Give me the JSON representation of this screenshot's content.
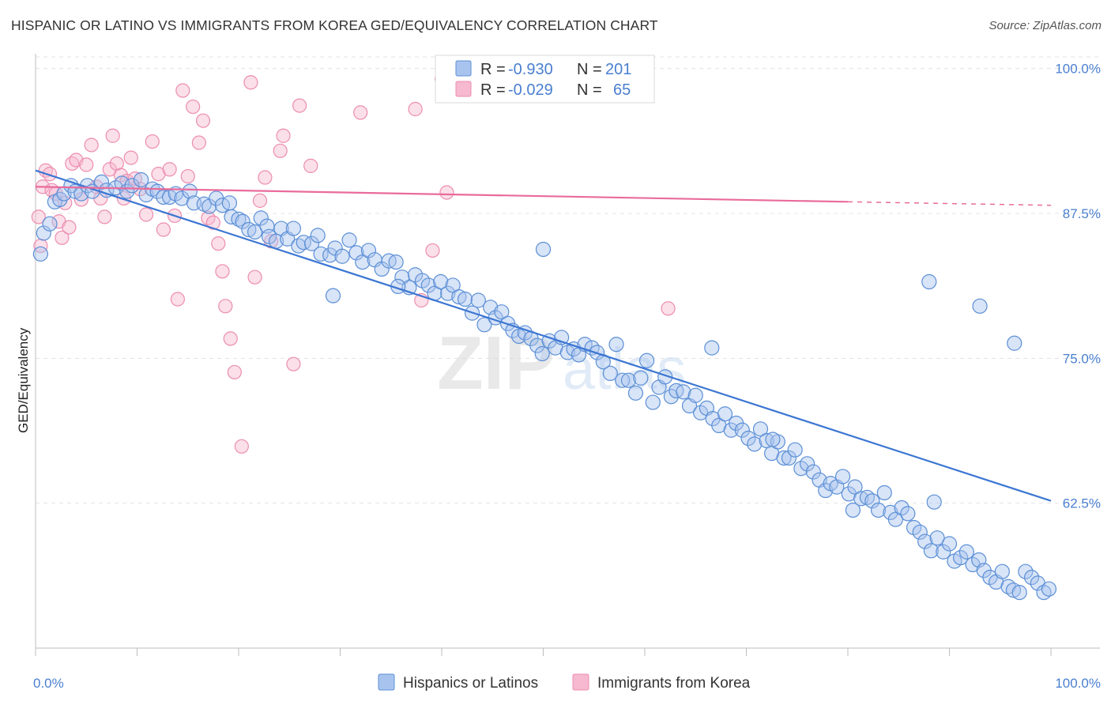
{
  "title": "HISPANIC OR LATINO VS IMMIGRANTS FROM KOREA GED/EQUIVALENCY CORRELATION CHART",
  "source": "Source: ZipAtlas.com",
  "watermark": {
    "zip": "ZIP",
    "atlas": "atlas"
  },
  "colors": {
    "blue": "#4a7fd0",
    "blue_fill": "#a8c4ee",
    "blue_stroke": "#5b8fd6",
    "pink": "#e96b9b",
    "pink_fill": "#f6b9cf",
    "pink_stroke": "#ec8db0"
  },
  "legend_top": {
    "rows": [
      {
        "r_label": "R = ",
        "r_value": "-0.930",
        "n_label": "N = ",
        "n_value": "201",
        "series": "blue"
      },
      {
        "r_label": "R = ",
        "r_value": "-0.029",
        "n_label": "N = ",
        "n_value": "65",
        "series": "pink"
      }
    ]
  },
  "legend_bottom": [
    "Hispanics or Latinos",
    "Immigrants from Korea"
  ],
  "chart_data": {
    "type": "scatter",
    "title": "HISPANIC OR LATINO VS IMMIGRANTS FROM KOREA GED/EQUIVALENCY CORRELATION CHART",
    "xlabel": "",
    "ylabel": "GED/Equivalency",
    "xlim": [
      0,
      100
    ],
    "ylim": [
      50,
      101
    ],
    "x_tick_labels": [
      "0.0%",
      "100.0%"
    ],
    "y_ticks": [
      62.5,
      75.0,
      87.5,
      100.0
    ],
    "y_tick_labels": [
      "62.5%",
      "75.0%",
      "87.5%",
      "100.0%"
    ],
    "grid": true,
    "legend_placement": "top-center",
    "series": [
      {
        "name": "Hispanics or Latinos",
        "color": "#4a7fd0",
        "trend": {
          "x": [
            0,
            100
          ],
          "y": [
            91.2,
            62.7
          ]
        },
        "points": [
          [
            0.5,
            84.0
          ],
          [
            0.8,
            85.8
          ],
          [
            1.4,
            86.6
          ],
          [
            1.9,
            88.5
          ],
          [
            2.4,
            88.7
          ],
          [
            2.8,
            89.2
          ],
          [
            3.5,
            89.9
          ],
          [
            3.9,
            89.4
          ],
          [
            4.5,
            89.2
          ],
          [
            5.1,
            89.9
          ],
          [
            5.6,
            89.4
          ],
          [
            6.5,
            90.2
          ],
          [
            7.0,
            89.5
          ],
          [
            7.9,
            89.7
          ],
          [
            8.5,
            90.1
          ],
          [
            9.0,
            89.4
          ],
          [
            9.5,
            89.9
          ],
          [
            10.4,
            90.4
          ],
          [
            10.9,
            89.1
          ],
          [
            11.5,
            89.6
          ],
          [
            12.0,
            89.4
          ],
          [
            12.6,
            88.9
          ],
          [
            13.2,
            88.9
          ],
          [
            13.8,
            89.2
          ],
          [
            14.4,
            88.8
          ],
          [
            15.2,
            89.4
          ],
          [
            15.6,
            88.4
          ],
          [
            16.6,
            88.3
          ],
          [
            17.1,
            88.1
          ],
          [
            17.8,
            88.8
          ],
          [
            18.4,
            88.2
          ],
          [
            19.1,
            88.4
          ],
          [
            19.3,
            87.2
          ],
          [
            20.0,
            87.0
          ],
          [
            20.4,
            86.8
          ],
          [
            21.0,
            86.1
          ],
          [
            21.6,
            85.9
          ],
          [
            22.2,
            87.1
          ],
          [
            22.8,
            86.4
          ],
          [
            23.0,
            85.5
          ],
          [
            23.7,
            85.1
          ],
          [
            24.2,
            86.2
          ],
          [
            24.8,
            85.3
          ],
          [
            25.4,
            86.2
          ],
          [
            25.9,
            84.7
          ],
          [
            26.4,
            85.0
          ],
          [
            27.2,
            84.9
          ],
          [
            27.8,
            85.6
          ],
          [
            28.1,
            84.0
          ],
          [
            29.0,
            83.9
          ],
          [
            29.5,
            84.5
          ],
          [
            30.2,
            83.8
          ],
          [
            30.9,
            85.2
          ],
          [
            31.6,
            84.1
          ],
          [
            32.2,
            83.3
          ],
          [
            32.8,
            84.3
          ],
          [
            33.4,
            83.5
          ],
          [
            34.1,
            82.7
          ],
          [
            34.8,
            83.4
          ],
          [
            35.5,
            83.3
          ],
          [
            36.1,
            82.0
          ],
          [
            36.8,
            81.1
          ],
          [
            37.4,
            82.2
          ],
          [
            38.1,
            81.7
          ],
          [
            38.7,
            81.3
          ],
          [
            39.3,
            80.6
          ],
          [
            39.9,
            81.6
          ],
          [
            40.6,
            80.6
          ],
          [
            41.1,
            81.3
          ],
          [
            41.7,
            80.3
          ],
          [
            42.3,
            80.1
          ],
          [
            43.0,
            78.9
          ],
          [
            43.6,
            80.0
          ],
          [
            44.2,
            77.9
          ],
          [
            44.8,
            79.4
          ],
          [
            45.3,
            78.5
          ],
          [
            45.9,
            79.0
          ],
          [
            46.5,
            78.0
          ],
          [
            47.0,
            77.4
          ],
          [
            47.6,
            76.9
          ],
          [
            48.2,
            77.2
          ],
          [
            48.8,
            76.7
          ],
          [
            49.4,
            76.1
          ],
          [
            49.9,
            75.4
          ],
          [
            50.6,
            76.5
          ],
          [
            51.2,
            75.9
          ],
          [
            51.8,
            76.8
          ],
          [
            52.4,
            75.5
          ],
          [
            53.0,
            75.8
          ],
          [
            53.5,
            75.3
          ],
          [
            54.1,
            76.2
          ],
          [
            54.8,
            75.9
          ],
          [
            55.3,
            75.5
          ],
          [
            55.9,
            74.7
          ],
          [
            56.6,
            73.7
          ],
          [
            57.2,
            76.2
          ],
          [
            57.8,
            73.1
          ],
          [
            58.4,
            73.1
          ],
          [
            59.1,
            72.0
          ],
          [
            59.6,
            73.3
          ],
          [
            60.2,
            74.8
          ],
          [
            60.8,
            71.2
          ],
          [
            61.4,
            72.5
          ],
          [
            62.0,
            73.4
          ],
          [
            62.6,
            71.7
          ],
          [
            63.1,
            72.2
          ],
          [
            63.8,
            72.1
          ],
          [
            64.4,
            70.9
          ],
          [
            65.0,
            71.8
          ],
          [
            65.5,
            70.3
          ],
          [
            66.1,
            70.7
          ],
          [
            66.7,
            69.8
          ],
          [
            67.3,
            69.2
          ],
          [
            67.9,
            70.2
          ],
          [
            68.5,
            68.8
          ],
          [
            69.0,
            69.4
          ],
          [
            69.6,
            68.8
          ],
          [
            70.2,
            68.1
          ],
          [
            70.8,
            67.6
          ],
          [
            71.4,
            68.9
          ],
          [
            72.0,
            67.9
          ],
          [
            72.5,
            66.8
          ],
          [
            73.1,
            67.8
          ],
          [
            73.7,
            66.4
          ],
          [
            74.2,
            66.4
          ],
          [
            74.8,
            67.1
          ],
          [
            75.4,
            65.5
          ],
          [
            76.0,
            65.9
          ],
          [
            76.6,
            65.2
          ],
          [
            77.2,
            64.5
          ],
          [
            77.8,
            63.6
          ],
          [
            78.3,
            64.2
          ],
          [
            78.9,
            63.9
          ],
          [
            79.5,
            64.8
          ],
          [
            80.1,
            63.3
          ],
          [
            80.7,
            63.9
          ],
          [
            81.3,
            62.9
          ],
          [
            81.9,
            63.0
          ],
          [
            82.4,
            62.7
          ],
          [
            83.0,
            61.9
          ],
          [
            83.6,
            63.4
          ],
          [
            84.2,
            61.7
          ],
          [
            84.7,
            61.1
          ],
          [
            85.3,
            62.1
          ],
          [
            85.9,
            61.6
          ],
          [
            86.5,
            60.4
          ],
          [
            87.1,
            60.0
          ],
          [
            87.6,
            59.2
          ],
          [
            88.2,
            58.4
          ],
          [
            88.8,
            59.5
          ],
          [
            89.4,
            58.3
          ],
          [
            90.0,
            59.0
          ],
          [
            90.5,
            57.5
          ],
          [
            91.1,
            57.8
          ],
          [
            91.7,
            58.3
          ],
          [
            92.3,
            57.2
          ],
          [
            92.9,
            57.6
          ],
          [
            93.4,
            56.7
          ],
          [
            94.0,
            56.1
          ],
          [
            94.6,
            55.7
          ],
          [
            95.2,
            56.6
          ],
          [
            95.8,
            55.3
          ],
          [
            96.3,
            55.0
          ],
          [
            96.9,
            54.8
          ],
          [
            97.5,
            56.6
          ],
          [
            98.1,
            56.1
          ],
          [
            98.7,
            55.6
          ],
          [
            99.3,
            54.8
          ],
          [
            99.8,
            55.1
          ],
          [
            29.3,
            80.4
          ],
          [
            35.7,
            81.2
          ],
          [
            50.0,
            84.4
          ],
          [
            66.6,
            75.9
          ],
          [
            72.6,
            68.0
          ],
          [
            88.0,
            81.6
          ],
          [
            80.5,
            61.9
          ],
          [
            88.5,
            62.6
          ],
          [
            93.0,
            79.5
          ],
          [
            96.4,
            76.3
          ]
        ]
      },
      {
        "name": "Immigrants from Korea",
        "color": "#e96b9b",
        "trend": {
          "x": [
            0,
            80
          ],
          "y": [
            89.8,
            88.5
          ]
        },
        "trend_dashed": {
          "x": [
            80,
            100
          ],
          "y": [
            88.5,
            88.2
          ]
        },
        "points": [
          [
            0.3,
            87.2
          ],
          [
            0.5,
            84.7
          ],
          [
            0.7,
            89.8
          ],
          [
            1.0,
            91.2
          ],
          [
            1.4,
            90.9
          ],
          [
            1.6,
            89.5
          ],
          [
            2.0,
            89.2
          ],
          [
            2.3,
            86.8
          ],
          [
            2.6,
            85.4
          ],
          [
            2.9,
            88.4
          ],
          [
            3.3,
            86.3
          ],
          [
            3.6,
            91.8
          ],
          [
            4.0,
            92.1
          ],
          [
            4.5,
            88.7
          ],
          [
            5.0,
            91.7
          ],
          [
            5.5,
            93.4
          ],
          [
            6.0,
            89.8
          ],
          [
            6.4,
            88.8
          ],
          [
            6.8,
            87.2
          ],
          [
            7.3,
            91.3
          ],
          [
            7.6,
            94.2
          ],
          [
            8.0,
            91.8
          ],
          [
            8.4,
            90.8
          ],
          [
            8.7,
            88.8
          ],
          [
            9.0,
            90.3
          ],
          [
            9.4,
            92.3
          ],
          [
            9.8,
            90.5
          ],
          [
            10.3,
            89.6
          ],
          [
            10.9,
            87.4
          ],
          [
            11.5,
            93.7
          ],
          [
            12.1,
            90.9
          ],
          [
            12.6,
            86.1
          ],
          [
            13.2,
            91.3
          ],
          [
            13.7,
            87.3
          ],
          [
            14.0,
            80.1
          ],
          [
            14.5,
            98.1
          ],
          [
            15.0,
            90.7
          ],
          [
            15.5,
            96.7
          ],
          [
            16.1,
            93.6
          ],
          [
            16.5,
            95.5
          ],
          [
            17.0,
            87.1
          ],
          [
            17.5,
            86.7
          ],
          [
            18.0,
            84.9
          ],
          [
            18.4,
            82.5
          ],
          [
            18.7,
            79.5
          ],
          [
            19.2,
            76.7
          ],
          [
            19.6,
            73.8
          ],
          [
            20.3,
            67.4
          ],
          [
            21.2,
            98.8
          ],
          [
            21.6,
            82.0
          ],
          [
            22.1,
            88.6
          ],
          [
            22.6,
            90.6
          ],
          [
            23.2,
            85.1
          ],
          [
            24.1,
            92.9
          ],
          [
            24.4,
            94.2
          ],
          [
            25.4,
            74.5
          ],
          [
            26.0,
            96.8
          ],
          [
            27.1,
            91.6
          ],
          [
            32.0,
            96.2
          ],
          [
            37.4,
            96.5
          ],
          [
            38.0,
            80.0
          ],
          [
            39.1,
            84.3
          ],
          [
            40.0,
            99.1
          ],
          [
            40.5,
            89.3
          ],
          [
            62.3,
            79.3
          ]
        ]
      }
    ]
  }
}
